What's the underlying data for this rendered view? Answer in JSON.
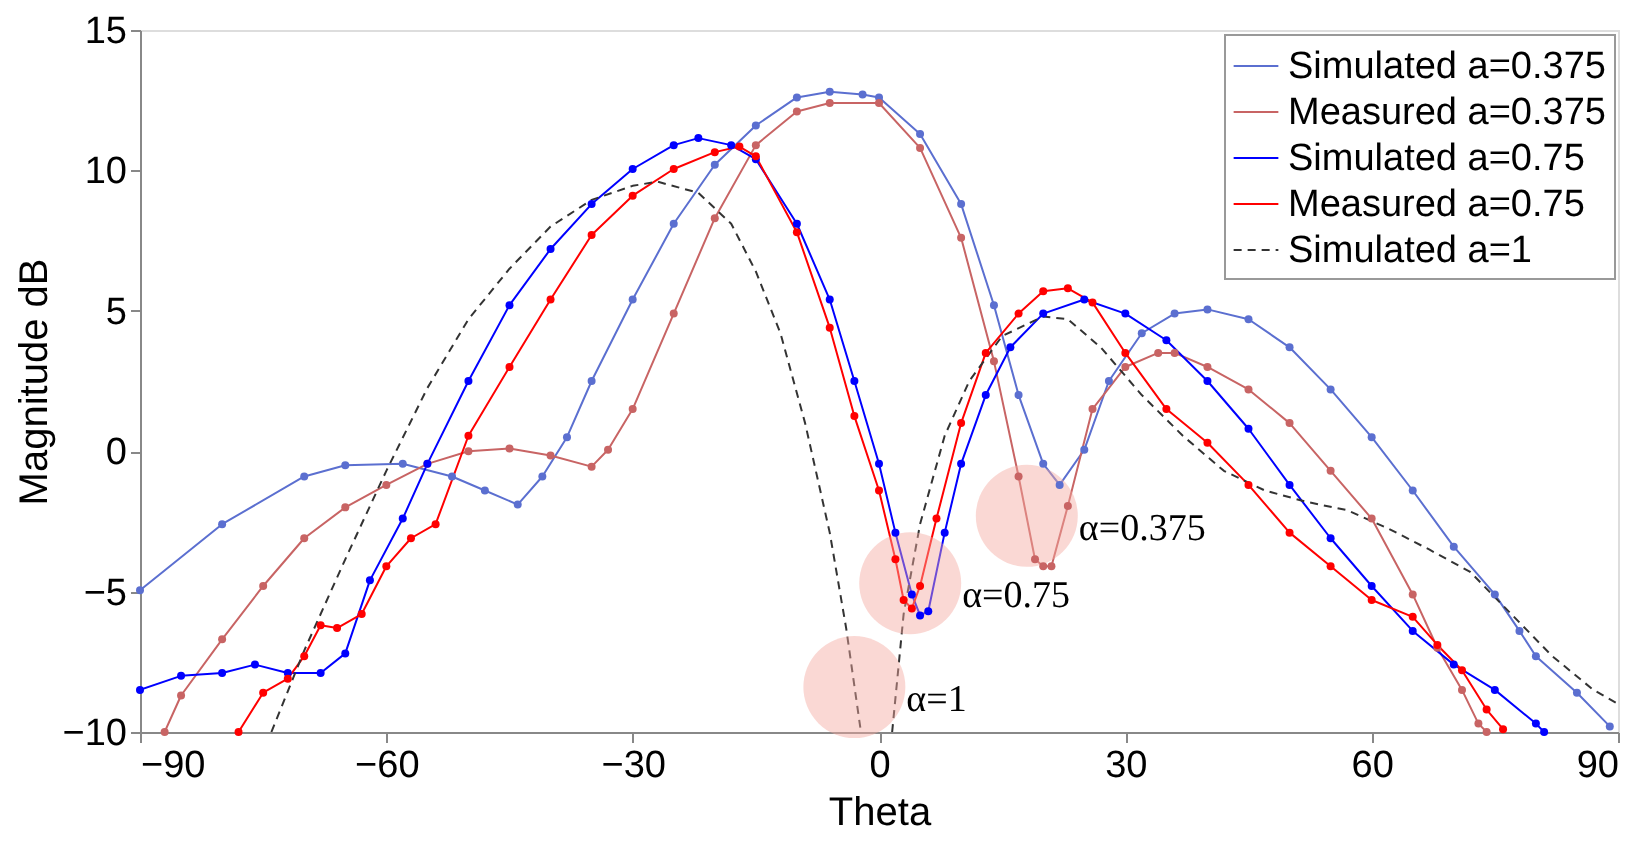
{
  "chart_data": {
    "type": "line",
    "xlabel": "Theta",
    "ylabel": "Magnitude dB",
    "xlim": [
      -90,
      90
    ],
    "xticks": [
      -90,
      -60,
      -30,
      0,
      30,
      60,
      90
    ],
    "ylim": [
      -10,
      15
    ],
    "yticks": [
      -10,
      -5,
      0,
      5,
      10,
      15
    ],
    "grid": false,
    "legend": "top right",
    "series": [
      {
        "name": "Simulated a=0.375",
        "color": "#5b6fd0",
        "marker": "circle",
        "line_style": "solid",
        "x": [
          -90,
          -80,
          -70,
          -65,
          -58,
          -52,
          -48,
          -44,
          -41,
          -38,
          -35,
          -30,
          -25,
          -20,
          -15,
          -10,
          -6,
          -2,
          0,
          5,
          10,
          14,
          17,
          20,
          22,
          25,
          28,
          32,
          36,
          40,
          45,
          50,
          55,
          60,
          65,
          70,
          75,
          78,
          80,
          85,
          89
        ],
        "values": [
          -4.95,
          -2.6,
          -0.9,
          -0.5,
          -0.45,
          -0.9,
          -1.4,
          -1.9,
          -0.9,
          0.5,
          2.5,
          5.4,
          8.1,
          10.2,
          11.6,
          12.6,
          12.8,
          12.7,
          12.6,
          11.3,
          8.8,
          5.2,
          2.0,
          -0.45,
          -1.2,
          0.05,
          2.5,
          4.2,
          4.9,
          5.05,
          4.7,
          3.7,
          2.2,
          0.5,
          -1.4,
          -3.4,
          -5.1,
          -6.4,
          -7.3,
          -8.6,
          -9.8
        ]
      },
      {
        "name": "Measured a=0.375",
        "color": "#c86464",
        "marker": "circle",
        "line_style": "solid",
        "x": [
          -87,
          -85,
          -80,
          -75,
          -70,
          -65,
          -60,
          -55,
          -50,
          -45,
          -40,
          -35,
          -33,
          -30,
          -25,
          -20,
          -15,
          -10,
          -6,
          0,
          5,
          10,
          14,
          17,
          19,
          20,
          21,
          23,
          26,
          30,
          34,
          36,
          40,
          45,
          50,
          55,
          60,
          65,
          68,
          71,
          73,
          74
        ],
        "values": [
          -10,
          -8.7,
          -6.7,
          -4.8,
          -3.1,
          -2.0,
          -1.2,
          -0.45,
          0,
          0.1,
          -0.15,
          -0.55,
          0.05,
          1.5,
          4.9,
          8.3,
          10.9,
          12.1,
          12.4,
          12.4,
          10.8,
          7.6,
          3.2,
          -0.9,
          -3.85,
          -4.1,
          -4.1,
          -1.95,
          1.5,
          3.0,
          3.5,
          3.5,
          3.0,
          2.2,
          1.0,
          -0.7,
          -2.4,
          -5.1,
          -7.0,
          -8.5,
          -9.7,
          -10
        ]
      },
      {
        "name": "Simulated a=0.75",
        "color": "#0000ff",
        "marker": "circle",
        "line_style": "solid",
        "x": [
          -90,
          -85,
          -80,
          -76,
          -72,
          -68,
          -65,
          -62,
          -58,
          -55,
          -50,
          -45,
          -40,
          -35,
          -30,
          -25,
          -22,
          -18,
          -15,
          -10,
          -6,
          -3,
          0,
          2,
          4,
          5,
          6,
          8,
          10,
          13,
          16,
          20,
          25,
          30,
          35,
          40,
          45,
          50,
          55,
          60,
          65,
          70,
          75,
          80,
          81
        ],
        "values": [
          -8.5,
          -8.0,
          -7.9,
          -7.6,
          -7.9,
          -7.9,
          -7.2,
          -4.6,
          -2.4,
          -0.45,
          2.5,
          5.2,
          7.2,
          8.8,
          10.05,
          10.9,
          11.15,
          10.9,
          10.4,
          8.1,
          5.4,
          2.5,
          -0.45,
          -2.9,
          -5.1,
          -5.85,
          -5.7,
          -2.9,
          -0.45,
          2.0,
          3.7,
          4.9,
          5.4,
          4.9,
          3.95,
          2.5,
          0.8,
          -1.2,
          -3.1,
          -4.8,
          -6.4,
          -7.6,
          -8.5,
          -9.7,
          -10
        ]
      },
      {
        "name": "Measured a=0.75",
        "color": "#ff0000",
        "marker": "circle",
        "line_style": "solid",
        "x": [
          -78,
          -75,
          -72,
          -70,
          -68,
          -66,
          -63,
          -60,
          -57,
          -54,
          -50,
          -45,
          -40,
          -35,
          -30,
          -25,
          -20,
          -17,
          -15,
          -10,
          -6,
          -3,
          0,
          2,
          3,
          4,
          5,
          7,
          10,
          13,
          17,
          20,
          23,
          26,
          30,
          35,
          40,
          45,
          50,
          55,
          60,
          65,
          68,
          71,
          74,
          76
        ],
        "values": [
          -10,
          -8.6,
          -8.1,
          -7.3,
          -6.2,
          -6.3,
          -5.8,
          -4.1,
          -3.1,
          -2.6,
          0.55,
          3.0,
          5.4,
          7.7,
          9.1,
          10.05,
          10.65,
          10.85,
          10.5,
          7.8,
          4.4,
          1.25,
          -1.4,
          -3.85,
          -5.3,
          -5.6,
          -4.8,
          -2.4,
          1.0,
          3.5,
          4.9,
          5.7,
          5.8,
          5.3,
          3.5,
          1.5,
          0.3,
          -1.2,
          -2.9,
          -4.1,
          -5.3,
          -5.9,
          -6.9,
          -7.8,
          -9.2,
          -9.9
        ]
      },
      {
        "name": "Simulated a=1",
        "color": "#333333",
        "marker": "none",
        "line_style": "dashed",
        "x": [
          -74,
          -70,
          -65,
          -60,
          -55,
          -50,
          -45,
          -40,
          -35,
          -30,
          -27,
          -22,
          -18,
          -15,
          -12,
          -9,
          -6,
          -4,
          -2.2,
          null,
          1.6,
          3,
          5,
          8,
          11,
          15,
          20,
          23,
          27,
          32,
          37,
          42,
          47,
          52,
          57,
          62,
          67,
          72,
          77,
          82,
          87,
          90
        ],
        "values": [
          -10,
          -7.1,
          -3.85,
          -0.7,
          2.25,
          4.7,
          6.5,
          8.0,
          8.95,
          9.45,
          9.6,
          9.2,
          8.1,
          6.4,
          4.2,
          1.0,
          -2.9,
          -6.3,
          -10,
          null,
          -10,
          -5.8,
          -2.6,
          0.55,
          2.5,
          4.1,
          4.8,
          4.7,
          3.7,
          2.0,
          0.55,
          -0.7,
          -1.4,
          -1.8,
          -2.1,
          -2.75,
          -3.5,
          -4.3,
          -5.8,
          -7.3,
          -8.5,
          -9.0
        ]
      }
    ],
    "annotations": [
      {
        "text": "α=1",
        "x": -3,
        "y": -8.4
      },
      {
        "text": "α=0.75",
        "x": 3.8,
        "y": -4.7
      },
      {
        "text": "α=0.375",
        "x": 18,
        "y": -2.3
      }
    ]
  }
}
